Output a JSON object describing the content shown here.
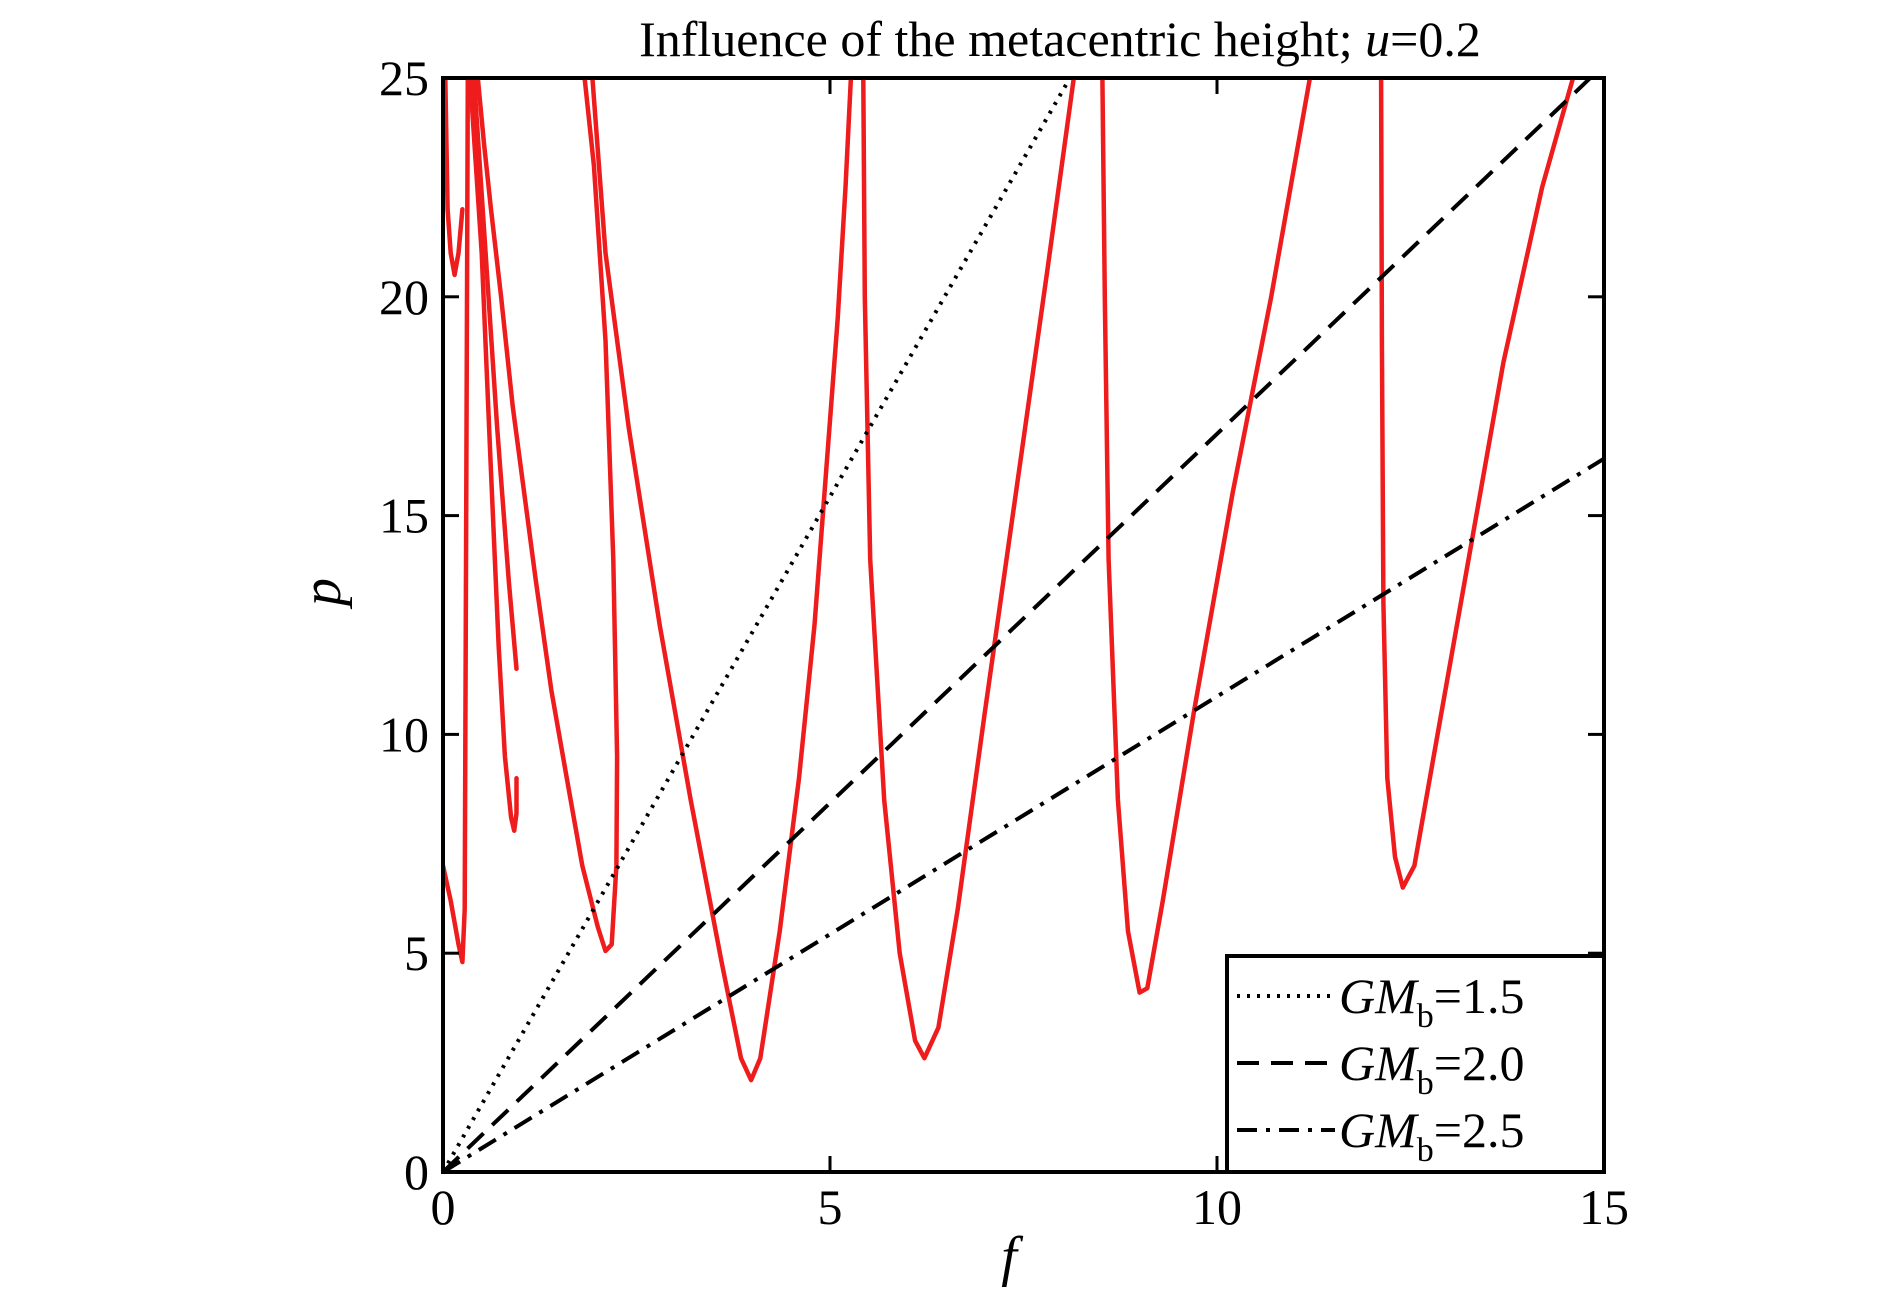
{
  "chart_data": {
    "type": "line",
    "title": "Influence of the metacentric height; ",
    "title_var": "u",
    "title_value": "=0.2",
    "xlabel": "f",
    "ylabel": "p",
    "xlim": [
      0,
      15
    ],
    "ylim": [
      0,
      25
    ],
    "xticks": [
      0,
      5,
      10,
      15
    ],
    "xtick_labels": [
      "0",
      "5",
      "10",
      "15"
    ],
    "yticks": [
      0,
      5,
      10,
      15,
      20,
      25
    ],
    "ytick_labels": [
      "0",
      "5",
      "10",
      "15",
      "20",
      "25"
    ],
    "grid": false,
    "legend_position": "bottom-right",
    "series": [
      {
        "name_main": "GM",
        "name_sub": "b",
        "name_value": "=1.5",
        "style": "dotted",
        "color": "#000000",
        "x": [
          0,
          8.1
        ],
        "y": [
          0,
          25
        ]
      },
      {
        "name_main": "GM",
        "name_sub": "b",
        "name_value": "=2.0",
        "style": "dashed",
        "color": "#000000",
        "x": [
          0,
          15
        ],
        "y": [
          0,
          25.3
        ]
      },
      {
        "name_main": "GM",
        "name_sub": "b",
        "name_value": "=2.5",
        "style": "dashdot",
        "color": "#000000",
        "x": [
          0,
          15
        ],
        "y": [
          0,
          16.3
        ]
      }
    ],
    "curves": {
      "color": "#ee1c1c",
      "segments": [
        [
          [
            0.0,
            7.0
          ],
          [
            0.1,
            6.2
          ],
          [
            0.2,
            5.2
          ],
          [
            0.25,
            4.8
          ],
          [
            0.28,
            6.0
          ],
          [
            0.3,
            15.0
          ],
          [
            0.32,
            25.0
          ]
        ],
        [
          [
            0.03,
            25.0
          ],
          [
            0.06,
            22.0
          ],
          [
            0.1,
            21.0
          ],
          [
            0.15,
            20.5
          ],
          [
            0.2,
            21.0
          ],
          [
            0.25,
            22.0
          ]
        ],
        [
          [
            0.35,
            25.0
          ],
          [
            0.5,
            21.0
          ],
          [
            0.62,
            16.0
          ],
          [
            0.72,
            12.0
          ],
          [
            0.8,
            9.5
          ],
          [
            0.88,
            8.1
          ],
          [
            0.92,
            7.8
          ],
          [
            0.95,
            8.2
          ],
          [
            0.95,
            9.0
          ]
        ],
        [
          [
            0.4,
            25.0
          ],
          [
            0.55,
            21.0
          ],
          [
            0.7,
            17.0
          ],
          [
            0.85,
            13.5
          ],
          [
            0.95,
            11.5
          ]
        ],
        [
          [
            1.83,
            25.0
          ],
          [
            1.95,
            23.0
          ],
          [
            2.1,
            19.0
          ],
          [
            2.2,
            14.0
          ],
          [
            2.25,
            9.5
          ],
          [
            2.24,
            7.0
          ],
          [
            2.18,
            5.2
          ],
          [
            2.1,
            5.05
          ],
          [
            2.0,
            5.6
          ],
          [
            1.8,
            7.0
          ],
          [
            1.6,
            9.0
          ],
          [
            1.4,
            11.0
          ],
          [
            1.2,
            13.5
          ],
          [
            1.05,
            15.5
          ],
          [
            0.9,
            17.5
          ],
          [
            0.75,
            20.0
          ],
          [
            0.62,
            22.0
          ],
          [
            0.53,
            23.5
          ],
          [
            0.45,
            25.0
          ]
        ],
        [
          [
            1.93,
            25.0
          ],
          [
            2.1,
            21.0
          ],
          [
            2.4,
            17.0
          ],
          [
            2.8,
            12.5
          ],
          [
            3.2,
            8.5
          ],
          [
            3.6,
            4.8
          ],
          [
            3.85,
            2.6
          ],
          [
            3.98,
            2.1
          ],
          [
            4.1,
            2.6
          ],
          [
            4.35,
            5.5
          ],
          [
            4.6,
            9.0
          ],
          [
            4.8,
            12.5
          ],
          [
            4.95,
            16.0
          ],
          [
            5.1,
            19.5
          ],
          [
            5.2,
            22.5
          ],
          [
            5.27,
            25.0
          ]
        ],
        [
          [
            5.43,
            25.0
          ],
          [
            5.45,
            20.0
          ],
          [
            5.52,
            14.0
          ],
          [
            5.7,
            8.5
          ],
          [
            5.9,
            5.0
          ],
          [
            6.1,
            3.0
          ],
          [
            6.22,
            2.6
          ],
          [
            6.4,
            3.3
          ],
          [
            6.65,
            6.0
          ],
          [
            7.0,
            10.5
          ],
          [
            7.4,
            15.5
          ],
          [
            7.8,
            20.5
          ],
          [
            8.15,
            25.0
          ]
        ],
        [
          [
            8.52,
            25.0
          ],
          [
            8.55,
            20.0
          ],
          [
            8.6,
            14.0
          ],
          [
            8.72,
            8.5
          ],
          [
            8.85,
            5.5
          ],
          [
            9.0,
            4.1
          ],
          [
            9.1,
            4.2
          ],
          [
            9.3,
            6.2
          ],
          [
            9.7,
            10.5
          ],
          [
            10.2,
            15.5
          ],
          [
            10.7,
            20.0
          ],
          [
            11.2,
            25.0
          ]
        ],
        [
          [
            12.12,
            25.0
          ],
          [
            12.13,
            19.0
          ],
          [
            12.15,
            13.0
          ],
          [
            12.2,
            9.0
          ],
          [
            12.3,
            7.2
          ],
          [
            12.4,
            6.5
          ],
          [
            12.55,
            7.0
          ],
          [
            12.8,
            9.5
          ],
          [
            13.2,
            13.5
          ],
          [
            13.7,
            18.5
          ],
          [
            14.2,
            22.5
          ],
          [
            14.6,
            25.0
          ]
        ]
      ]
    }
  }
}
